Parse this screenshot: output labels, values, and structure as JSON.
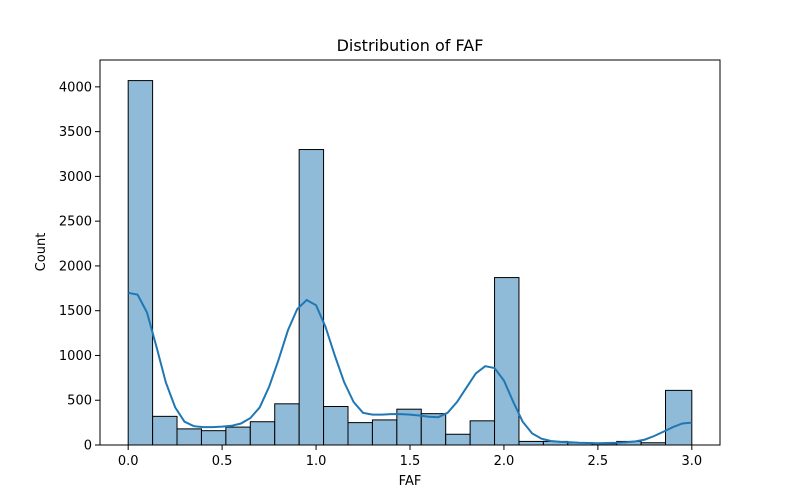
{
  "chart_data": {
    "type": "bar",
    "title": "Distribution of FAF",
    "xlabel": "FAF",
    "ylabel": "Count",
    "xlim": [
      -0.15,
      3.15
    ],
    "ylim": [
      0,
      4300
    ],
    "xticks": [
      "0.0",
      "0.5",
      "1.0",
      "1.5",
      "2.0",
      "2.5",
      "3.0"
    ],
    "yticks": [
      "0",
      "500",
      "1000",
      "1500",
      "2000",
      "2500",
      "3000",
      "3500",
      "4000"
    ],
    "bin_edges": [
      0.0,
      0.13,
      0.26,
      0.39,
      0.52,
      0.65,
      0.78,
      0.91,
      1.04,
      1.17,
      1.3,
      1.43,
      1.56,
      1.69,
      1.82,
      1.95,
      2.08,
      2.21,
      2.34,
      2.47,
      2.6,
      2.73,
      2.86,
      3.0
    ],
    "values": [
      4070,
      320,
      180,
      160,
      200,
      260,
      460,
      3300,
      430,
      250,
      280,
      400,
      350,
      120,
      270,
      1870,
      40,
      40,
      25,
      15,
      40,
      25,
      610
    ],
    "kde": {
      "x": [
        0.0,
        0.05,
        0.1,
        0.15,
        0.2,
        0.25,
        0.3,
        0.35,
        0.4,
        0.45,
        0.5,
        0.55,
        0.6,
        0.65,
        0.7,
        0.75,
        0.8,
        0.85,
        0.9,
        0.95,
        1.0,
        1.05,
        1.1,
        1.15,
        1.2,
        1.25,
        1.3,
        1.35,
        1.4,
        1.45,
        1.5,
        1.55,
        1.6,
        1.65,
        1.7,
        1.75,
        1.8,
        1.85,
        1.9,
        1.95,
        2.0,
        2.05,
        2.1,
        2.15,
        2.2,
        2.25,
        2.3,
        2.35,
        2.4,
        2.45,
        2.5,
        2.55,
        2.6,
        2.65,
        2.7,
        2.75,
        2.8,
        2.85,
        2.9,
        2.95,
        3.0
      ],
      "y": [
        1700,
        1680,
        1480,
        1100,
        700,
        420,
        260,
        210,
        200,
        200,
        205,
        215,
        240,
        300,
        420,
        650,
        950,
        1280,
        1520,
        1620,
        1560,
        1320,
        1000,
        700,
        480,
        360,
        340,
        340,
        345,
        345,
        340,
        330,
        315,
        310,
        360,
        480,
        640,
        800,
        880,
        860,
        720,
        480,
        260,
        130,
        70,
        45,
        35,
        30,
        25,
        22,
        20,
        22,
        25,
        30,
        40,
        60,
        100,
        150,
        200,
        240,
        250
      ]
    }
  }
}
